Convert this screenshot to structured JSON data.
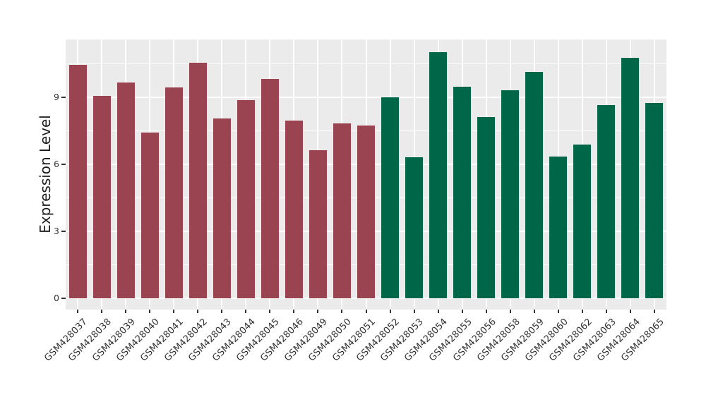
{
  "chart_data": {
    "type": "bar",
    "title": "",
    "xlabel": "",
    "ylabel": "Expression Level",
    "ylim": [
      0,
      11.6
    ],
    "yticks": [
      0,
      3,
      6,
      9
    ],
    "yticks_minor": [
      1.5,
      4.5,
      7.5,
      10.5
    ],
    "grid": "on",
    "legend_position": "none",
    "groups": [
      {
        "name": "group-1",
        "color": "#9A4452"
      },
      {
        "name": "group-2",
        "color": "#006648"
      }
    ],
    "bars": [
      {
        "label": "GSM428037",
        "value": 10.45,
        "group": 0
      },
      {
        "label": "GSM428038",
        "value": 9.05,
        "group": 0
      },
      {
        "label": "GSM428039",
        "value": 9.67,
        "group": 0
      },
      {
        "label": "GSM428040",
        "value": 7.41,
        "group": 0
      },
      {
        "label": "GSM428041",
        "value": 9.45,
        "group": 0
      },
      {
        "label": "GSM428042",
        "value": 10.56,
        "group": 0
      },
      {
        "label": "GSM428043",
        "value": 8.04,
        "group": 0
      },
      {
        "label": "GSM428044",
        "value": 8.88,
        "group": 0
      },
      {
        "label": "GSM428045",
        "value": 9.82,
        "group": 0
      },
      {
        "label": "GSM428046",
        "value": 7.97,
        "group": 0
      },
      {
        "label": "GSM428049",
        "value": 6.62,
        "group": 0
      },
      {
        "label": "GSM428050",
        "value": 7.83,
        "group": 0
      },
      {
        "label": "GSM428051",
        "value": 7.73,
        "group": 0
      },
      {
        "label": "GSM428052",
        "value": 9.0,
        "group": 1
      },
      {
        "label": "GSM428053",
        "value": 6.3,
        "group": 1
      },
      {
        "label": "GSM428054",
        "value": 11.02,
        "group": 1
      },
      {
        "label": "GSM428055",
        "value": 9.48,
        "group": 1
      },
      {
        "label": "GSM428056",
        "value": 8.11,
        "group": 1
      },
      {
        "label": "GSM428058",
        "value": 9.31,
        "group": 1
      },
      {
        "label": "GSM428059",
        "value": 10.13,
        "group": 1
      },
      {
        "label": "GSM428060",
        "value": 6.36,
        "group": 1
      },
      {
        "label": "GSM428062",
        "value": 6.88,
        "group": 1
      },
      {
        "label": "GSM428063",
        "value": 8.64,
        "group": 1
      },
      {
        "label": "GSM428064",
        "value": 10.77,
        "group": 1
      },
      {
        "label": "GSM428065",
        "value": 8.75,
        "group": 1
      }
    ]
  },
  "style": {
    "figure_bg": "#FFFFFF",
    "panel_bg": "#EBEBEB",
    "grid_color": "#FFFFFF",
    "tick_color": "#333333",
    "axis_text_color": "#333333",
    "axis_title_color": "#1A1A1A"
  }
}
